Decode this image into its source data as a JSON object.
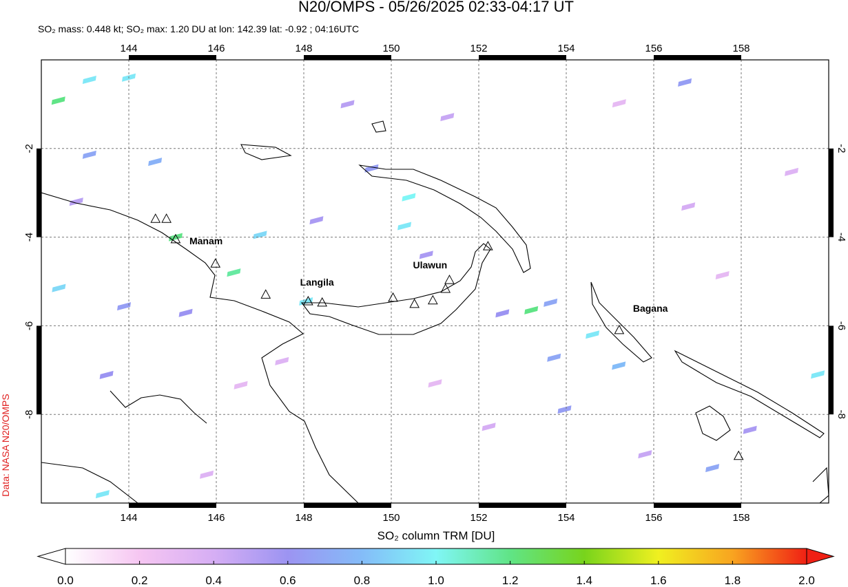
{
  "map": {
    "title": "N20/OMPS - 05/26/2025 02:33-04:17 UT",
    "subtitle": "SO₂ mass: 0.448 kt; SO₂ max: 1.20 DU at lon: 142.39 lat: -0.92 ; 04:16UTC",
    "credit": "Data: NASA N20/OMPS",
    "lonlim": [
      142,
      160
    ],
    "latlim": [
      -10,
      0
    ],
    "lonticks": [
      144,
      146,
      148,
      150,
      152,
      154,
      156,
      158
    ],
    "latticks": [
      -2,
      -4,
      -6,
      -8
    ],
    "grid": true,
    "pixels": [
      [
        142.39,
        -0.92,
        1.2
      ],
      [
        143.1,
        -0.45,
        0.95
      ],
      [
        144.0,
        -0.4,
        0.95
      ],
      [
        145.07,
        -4.0,
        1.2
      ],
      [
        146.4,
        -4.8,
        1.15
      ],
      [
        147.0,
        -3.95,
        0.9
      ],
      [
        150.3,
        -3.75,
        0.95
      ],
      [
        150.4,
        -3.1,
        1.0
      ],
      [
        148.05,
        -5.45,
        0.95
      ],
      [
        153.2,
        -5.65,
        1.2
      ],
      [
        154.6,
        -6.2,
        0.95
      ],
      [
        155.2,
        -6.9,
        0.8
      ],
      [
        159.75,
        -7.1,
        0.95
      ],
      [
        143.4,
        -9.8,
        0.95
      ],
      [
        142.4,
        -5.15,
        0.9
      ],
      [
        143.1,
        -2.14,
        0.7
      ],
      [
        144.6,
        -2.3,
        0.75
      ],
      [
        149.55,
        -2.45,
        0.65
      ],
      [
        148.29,
        -3.62,
        0.55
      ],
      [
        152.54,
        -5.72,
        0.6
      ],
      [
        153.64,
        -5.48,
        0.7
      ],
      [
        153.72,
        -6.72,
        0.7
      ],
      [
        153.96,
        -7.89,
        0.65
      ],
      [
        156.71,
        -0.51,
        0.65
      ],
      [
        157.34,
        -9.21,
        0.7
      ],
      [
        143.89,
        -5.56,
        0.65
      ],
      [
        145.3,
        -5.71,
        0.6
      ],
      [
        143.49,
        -7.11,
        0.6
      ],
      [
        158.2,
        -8.35,
        0.55
      ],
      [
        151.28,
        -1.29,
        0.45
      ],
      [
        156.79,
        -3.31,
        0.4
      ],
      [
        152.23,
        -8.28,
        0.4
      ],
      [
        145.78,
        -9.36,
        0.35
      ],
      [
        159.15,
        -2.53,
        0.35
      ],
      [
        155.21,
        -0.98,
        0.3
      ],
      [
        146.56,
        -7.34,
        0.3
      ],
      [
        157.57,
        -4.86,
        0.3
      ],
      [
        149.0,
        -1.0,
        0.5
      ],
      [
        147.5,
        -6.8,
        0.35
      ],
      [
        151.0,
        -7.3,
        0.3
      ],
      [
        155.8,
        -8.9,
        0.45
      ],
      [
        142.8,
        -3.2,
        0.5
      ],
      [
        150.8,
        -4.4,
        0.55
      ]
    ],
    "volcanoes": [
      {
        "lon": 144.61,
        "lat": -3.59
      },
      {
        "lon": 144.86,
        "lat": -3.59
      },
      {
        "lon": 145.07,
        "lat": -4.05,
        "name": "Manam"
      },
      {
        "lon": 145.98,
        "lat": -4.6
      },
      {
        "lon": 147.13,
        "lat": -5.3
      },
      {
        "lon": 148.1,
        "lat": -5.45
      },
      {
        "lon": 148.42,
        "lat": -5.48,
        "name": "Langila"
      },
      {
        "lon": 150.04,
        "lat": -5.37
      },
      {
        "lon": 150.53,
        "lat": -5.51
      },
      {
        "lon": 150.95,
        "lat": -5.43
      },
      {
        "lon": 151.24,
        "lat": -5.17
      },
      {
        "lon": 151.33,
        "lat": -4.97,
        "name": "Ulawun"
      },
      {
        "lon": 152.21,
        "lat": -4.21
      },
      {
        "lon": 155.21,
        "lat": -6.1,
        "name": "Bagana"
      },
      {
        "lon": 157.94,
        "lat": -8.94
      }
    ],
    "colorbar": {
      "label": "SO₂ column TRM [DU]",
      "clim": [
        0,
        2
      ],
      "colormap": [
        "#ffffff",
        "#f6c6f2",
        "#d6aef4",
        "#9c94f2",
        "#84bcf8",
        "#80f6f6",
        "#60e486",
        "#78d41c",
        "#f0f020",
        "#f8a420",
        "#f02014"
      ],
      "ticks": [
        {
          "value": 0,
          "label": "0.0"
        },
        {
          "value": 0.2,
          "label": "0.2"
        },
        {
          "value": 0.4,
          "label": "0.4"
        },
        {
          "value": 0.6,
          "label": "0.6"
        },
        {
          "value": 0.8,
          "label": "0.8"
        },
        {
          "value": 1,
          "label": "1.0"
        },
        {
          "value": 1.2,
          "label": "1.2"
        },
        {
          "value": 1.4,
          "label": "1.4"
        },
        {
          "value": 1.6,
          "label": "1.6"
        },
        {
          "value": 1.8,
          "label": "1.8"
        },
        {
          "value": 2,
          "label": "2.0"
        }
      ]
    }
  }
}
